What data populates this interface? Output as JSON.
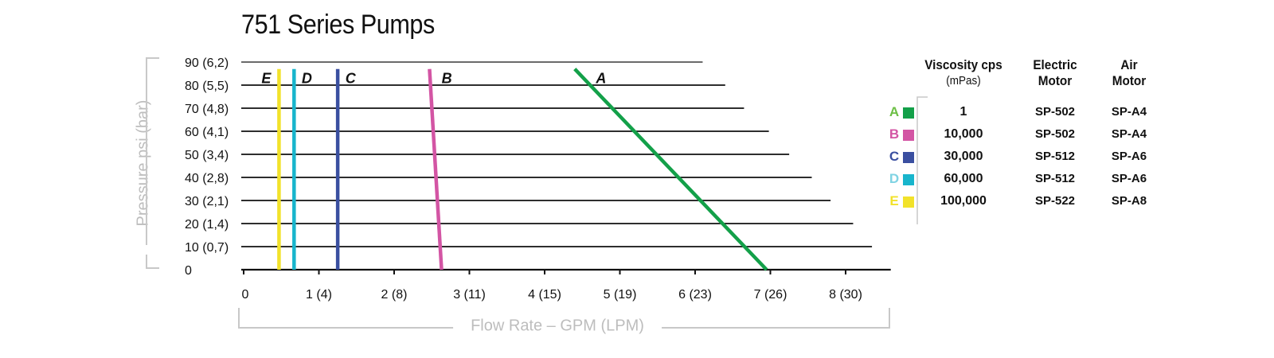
{
  "chart_data": {
    "type": "line",
    "title": "751 Series Pumps",
    "xlabel": "Flow Rate – GPM (LPM)",
    "ylabel": "Pressure psi (bar)",
    "xlim": [
      0,
      8.6
    ],
    "ylim": [
      0,
      90
    ],
    "x_ticks": [
      0,
      1,
      2,
      3,
      4,
      5,
      6,
      7,
      8
    ],
    "x_tick_labels": [
      "0",
      "1 (4)",
      "2 (8)",
      "3 (11)",
      "4 (15)",
      "5 (19)",
      "6 (23)",
      "7 (26)",
      "8 (30)"
    ],
    "y_ticks": [
      0,
      10,
      20,
      30,
      40,
      50,
      60,
      70,
      80,
      90
    ],
    "y_tick_labels": [
      "0",
      "10 (0,7)",
      "20 (1,4)",
      "30 (2,1)",
      "40 (2,8)",
      "50 (3,4)",
      "60 (4,1)",
      "70 (4,8)",
      "80 (5,5)",
      "90 (6,2)"
    ],
    "gridlines": [
      {
        "y": 90,
        "x_end": 6.1
      },
      {
        "y": 80,
        "x_end": 6.4
      },
      {
        "y": 70,
        "x_end": 6.65
      },
      {
        "y": 60,
        "x_end": 6.98
      },
      {
        "y": 50,
        "x_end": 7.25
      },
      {
        "y": 40,
        "x_end": 7.55
      },
      {
        "y": 30,
        "x_end": 7.8
      },
      {
        "y": 20,
        "x_end": 8.1
      },
      {
        "y": 10,
        "x_end": 8.35
      },
      {
        "y": 0,
        "x_end": 8.6
      }
    ],
    "series": [
      {
        "name": "A",
        "color": "#13a049",
        "points": [
          [
            4.4,
            87
          ],
          [
            6.95,
            0
          ]
        ],
        "label_point": [
          4.75,
          83
        ]
      },
      {
        "name": "B",
        "color": "#d355a4",
        "points": [
          [
            2.47,
            87
          ],
          [
            2.63,
            0
          ]
        ],
        "label_point": [
          2.7,
          83
        ]
      },
      {
        "name": "C",
        "color": "#3a4fa0",
        "points": [
          [
            1.25,
            87
          ],
          [
            1.25,
            0
          ]
        ],
        "label_point": [
          1.42,
          83
        ]
      },
      {
        "name": "D",
        "color": "#18b5cc",
        "points": [
          [
            0.67,
            87
          ],
          [
            0.67,
            0
          ]
        ],
        "label_point": [
          0.84,
          83
        ]
      },
      {
        "name": "E",
        "color": "#f2e22a",
        "points": [
          [
            0.47,
            87
          ],
          [
            0.47,
            0
          ]
        ],
        "label_point": [
          0.3,
          83
        ]
      }
    ]
  },
  "legend": {
    "header_viscosity": "Viscosity cps",
    "header_viscosity_sub": "(mPas)",
    "header_electric_1": "Electric",
    "header_electric_2": "Motor",
    "header_air_1": "Air",
    "header_air_2": "Motor",
    "rows": [
      {
        "letter": "A",
        "color": "#6cbf45",
        "swatch": "#13a049",
        "viscosity": "1",
        "electric": "SP-502",
        "air": "SP-A4"
      },
      {
        "letter": "B",
        "color": "#d355a4",
        "swatch": "#d355a4",
        "viscosity": "10,000",
        "electric": "SP-502",
        "air": "SP-A4"
      },
      {
        "letter": "C",
        "color": "#3a4fa0",
        "swatch": "#3a4fa0",
        "viscosity": "30,000",
        "electric": "SP-512",
        "air": "SP-A6"
      },
      {
        "letter": "D",
        "color": "#7fd3e3",
        "swatch": "#18b5cc",
        "viscosity": "60,000",
        "electric": "SP-512",
        "air": "SP-A6"
      },
      {
        "letter": "E",
        "color": "#f2e22a",
        "swatch": "#f2e22a",
        "viscosity": "100,000",
        "electric": "SP-522",
        "air": "SP-A8"
      }
    ]
  }
}
